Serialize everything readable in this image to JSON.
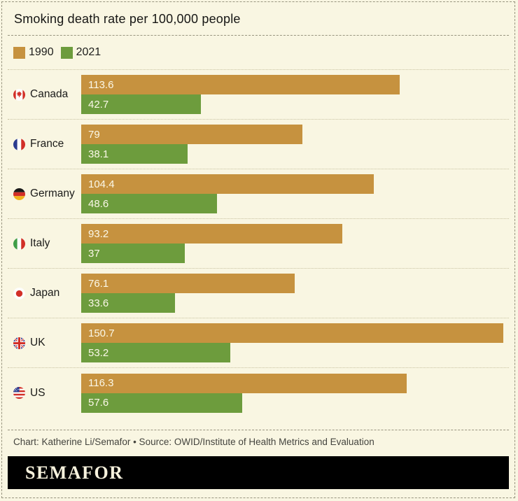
{
  "title": "Smoking death rate per 100,000 people",
  "legend": {
    "items": [
      {
        "label": "1990",
        "color": "#c6923f",
        "icon": "legend-swatch-1990"
      },
      {
        "label": "2021",
        "color": "#6d9c3d",
        "icon": "legend-swatch-2021"
      }
    ]
  },
  "chart_data": {
    "type": "bar",
    "orientation": "horizontal",
    "title": "Smoking death rate per 100,000 people",
    "categories": [
      "Canada",
      "France",
      "Germany",
      "Italy",
      "Japan",
      "UK",
      "US"
    ],
    "flags": [
      "canada",
      "france",
      "germany",
      "italy",
      "japan",
      "uk",
      "us"
    ],
    "series": [
      {
        "name": "1990",
        "color": "#c6923f",
        "values": [
          113.6,
          79,
          104.4,
          93.2,
          76.1,
          150.7,
          116.3
        ]
      },
      {
        "name": "2021",
        "color": "#6d9c3d",
        "values": [
          42.7,
          38.1,
          48.6,
          37,
          33.6,
          53.2,
          57.6
        ]
      }
    ],
    "axis_max": 150.7,
    "value_labels": "inside-left",
    "grid": false,
    "legend_position": "top-left"
  },
  "footer": {
    "credit": "Chart: Katherine Li/Semafor • Source: OWID/Institute of Health Metrics and Evaluation"
  },
  "logo": {
    "text": "SEMAFOR"
  },
  "colors": {
    "background": "#f9f6e2",
    "bar_1990": "#c6923f",
    "bar_2021": "#6d9c3d",
    "bar_value_text": "#fbf8e8",
    "text_dark": "#1b1b19",
    "credit_text": "#44443e",
    "logo_bar": "#000000",
    "logo_text": "#f7f2dd",
    "dashed_line": "#98947f",
    "dotted_line": "#c9c3a2"
  }
}
